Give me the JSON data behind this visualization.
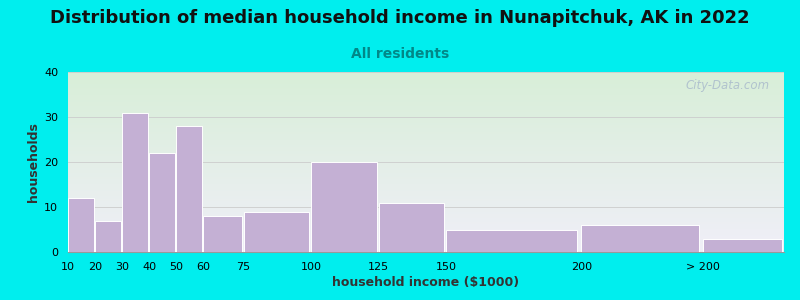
{
  "title": "Distribution of median household income in Nunapitchuk, AK in 2022",
  "subtitle": "All residents",
  "xlabel": "household income ($1000)",
  "ylabel": "households",
  "background_outer": "#00EEEE",
  "bar_color": "#C4B0D4",
  "bar_edge_color": "#FFFFFF",
  "plot_bg_top": "#D8EED8",
  "plot_bg_bottom": "#F0EEF8",
  "categories": [
    "10",
    "20",
    "30",
    "40",
    "50",
    "60",
    "75",
    "100",
    "125",
    "150",
    "200",
    "> 200"
  ],
  "values": [
    12,
    7,
    31,
    22,
    28,
    8,
    9,
    20,
    11,
    5,
    6,
    3
  ],
  "ylim": [
    0,
    40
  ],
  "yticks": [
    0,
    10,
    20,
    30,
    40
  ],
  "grid_color": "#CCCCCC",
  "title_fontsize": 13,
  "subtitle_fontsize": 10,
  "axis_label_fontsize": 9,
  "tick_fontsize": 8,
  "watermark_text": "City-Data.com",
  "watermark_color": "#AABBCC",
  "title_color": "#111111",
  "subtitle_color": "#008888"
}
